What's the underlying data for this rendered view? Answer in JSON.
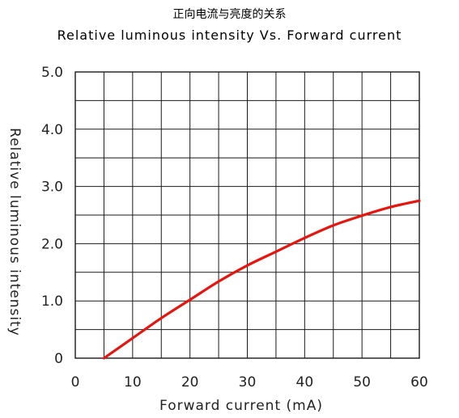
{
  "chart_data": {
    "type": "line",
    "title": "正向电流与亮度的关系",
    "subtitle": "Relative luminous intensity Vs. Forward current",
    "xlabel": "Forward current (mA)",
    "ylabel": "Relative luminous intensity",
    "xlim": [
      0,
      60
    ],
    "ylim": [
      0,
      5.0
    ],
    "x_ticks": [
      0,
      10,
      20,
      30,
      40,
      50,
      60
    ],
    "x_tick_labels": [
      "0",
      "10",
      "20",
      "30",
      "40",
      "50",
      "60"
    ],
    "y_ticks": [
      0,
      1.0,
      2.0,
      3.0,
      4.0,
      5.0
    ],
    "y_tick_labels": [
      "0",
      "1.0",
      "2.0",
      "3.0",
      "4.0",
      "5.0"
    ],
    "grid": true,
    "x_grid_step": 5,
    "y_grid_step": 0.5,
    "series": [
      {
        "color": "#e8140e",
        "x": [
          5,
          10,
          15,
          20,
          25,
          30,
          35,
          40,
          45,
          50,
          55,
          60
        ],
        "y": [
          0.0,
          0.35,
          0.7,
          1.02,
          1.34,
          1.62,
          1.86,
          2.1,
          2.32,
          2.49,
          2.64,
          2.75
        ]
      }
    ]
  }
}
